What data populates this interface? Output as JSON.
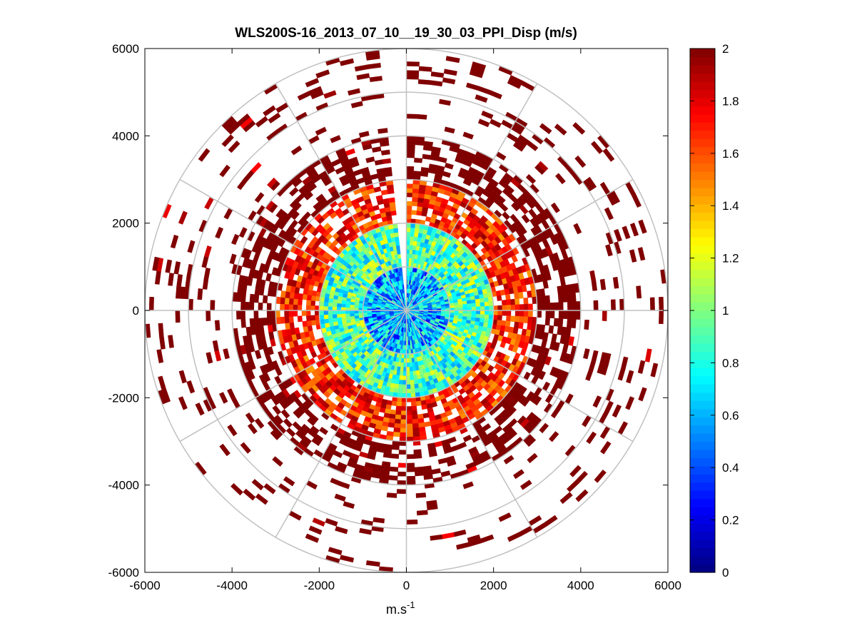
{
  "chart_data": {
    "type": "heatmap",
    "subtype": "polar-ppi-scan",
    "title": "WLS200S-16_2013_07_10__19_30_03_PPI_Disp (m/s)",
    "xlabel": {
      "base": "m.s",
      "exponent": "-1"
    },
    "ylabel": "",
    "xlim": [
      -6000,
      6000
    ],
    "ylim": [
      -6000,
      6000
    ],
    "xticks": [
      -6000,
      -4000,
      -2000,
      0,
      2000,
      4000,
      6000
    ],
    "xtick_labels": [
      "-6000",
      "-4000",
      "-2000",
      "0",
      "2000",
      "4000",
      "6000"
    ],
    "yticks": [
      6000,
      4000,
      2000,
      0,
      -2000,
      -4000,
      -6000
    ],
    "ytick_labels": [
      "6000",
      "4000",
      "2000",
      "0",
      "-2000",
      "-4000",
      "-6000"
    ],
    "polar_grid": {
      "ring_radii": [
        1000,
        2000,
        3000,
        4000,
        5000,
        6000
      ],
      "spoke_angles_deg": [
        0,
        30,
        60,
        90,
        120,
        150,
        180,
        210,
        240,
        270,
        300,
        330
      ],
      "color": "#c0c0c0"
    },
    "colorbar": {
      "colormap": "jet",
      "clim": [
        0,
        2
      ],
      "ticks": [
        0,
        0.2,
        0.4,
        0.6,
        0.8,
        1,
        1.2,
        1.4,
        1.6,
        1.8,
        2
      ],
      "tick_labels": [
        "0",
        "0.2",
        "0.4",
        "0.6",
        "0.8",
        "1",
        "1.2",
        "1.4",
        "1.6",
        "1.8",
        "2"
      ]
    },
    "scan": {
      "range_gate_m": 100,
      "max_range_m": 6000,
      "beam_width_deg": 3,
      "gap_sector_deg": [
        -6,
        0
      ],
      "value_by_range": [
        {
          "range_m": [
            0,
            1000
          ],
          "mean": 0.6,
          "coverage": 1.0
        },
        {
          "range_m": [
            1000,
            2000
          ],
          "mean": 0.9,
          "coverage": 1.0
        },
        {
          "range_m": [
            2000,
            3000
          ],
          "mean": 1.7,
          "coverage": 0.8
        },
        {
          "range_m": [
            3000,
            4000
          ],
          "mean": 2.0,
          "coverage": 0.55
        },
        {
          "range_m": [
            4000,
            6000
          ],
          "mean": 2.0,
          "coverage": 0.12
        }
      ]
    }
  }
}
